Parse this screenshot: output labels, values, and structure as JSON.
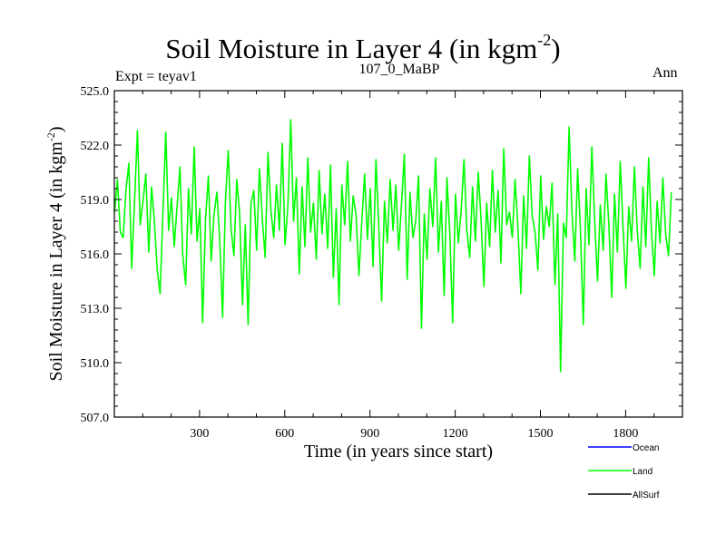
{
  "chart_data": {
    "type": "line",
    "title": "Soil Moisture in Layer 4 (in kgm",
    "title_superscript": "-2",
    "title_suffix": ")",
    "subtitle_left": "Expt = teyav1",
    "subtitle_center": "107_0_MaBP",
    "subtitle_right": "Ann",
    "xlabel": "Time (in years since start)",
    "ylabel": "Soil Moisture in Layer 4 (in kgm",
    "ylabel_superscript": "-2",
    "ylabel_suffix": ")",
    "xlim": [
      0,
      2000
    ],
    "ylim": [
      507.0,
      525.0
    ],
    "xticks": [
      300,
      600,
      900,
      1200,
      1500,
      1800
    ],
    "yticks": [
      "507.0",
      "510.0",
      "513.0",
      "516.0",
      "519.0",
      "522.0",
      "525.0"
    ],
    "legend_placement": "bottom-right",
    "series": [
      {
        "name": "Ocean",
        "color": "#0000ff",
        "values": []
      },
      {
        "name": "Land",
        "color": "#00ff00",
        "x_start": 1,
        "x_step": 10,
        "values": [
          518.3,
          520.1,
          517.2,
          516.9,
          519.5,
          521.0,
          515.2,
          518.8,
          522.8,
          517.6,
          518.9,
          520.4,
          516.1,
          519.7,
          517.8,
          515.1,
          513.8,
          518.2,
          522.7,
          517.3,
          519.1,
          516.4,
          518.7,
          520.8,
          515.9,
          514.3,
          519.6,
          517.1,
          521.9,
          516.7,
          518.5,
          512.2,
          517.9,
          520.3,
          515.6,
          518.2,
          519.4,
          516.8,
          512.5,
          518.9,
          521.7,
          517.4,
          515.9,
          520.1,
          518.3,
          513.2,
          517.6,
          512.1,
          518.8,
          519.5,
          516.2,
          520.7,
          517.9,
          515.8,
          521.6,
          518.4,
          516.9,
          519.8,
          517.3,
          522.1,
          516.5,
          518.6,
          523.4,
          517.8,
          520.2,
          514.9,
          519.7,
          516.4,
          521.3,
          517.2,
          518.8,
          515.7,
          520.6,
          517.1,
          519.3,
          516.3,
          520.9,
          514.7,
          518.5,
          513.2,
          519.8,
          517.6,
          521.1,
          516.7,
          519.2,
          518.1,
          514.8,
          517.7,
          520.4,
          516.8,
          519.6,
          515.3,
          521.2,
          517.5,
          513.4,
          518.9,
          516.6,
          520.1,
          517.3,
          519.8,
          516.2,
          518.7,
          521.5,
          514.6,
          519.4,
          516.9,
          517.8,
          520.3,
          511.9,
          518.2,
          515.7,
          519.6,
          517.5,
          521.3,
          516.1,
          518.9,
          513.7,
          520.2,
          517.1,
          512.2,
          519.3,
          516.6,
          518.4,
          521.2,
          517.3,
          515.8,
          519.7,
          516.7,
          520.5,
          517.9,
          514.2,
          518.8,
          516.4,
          520.6,
          517.2,
          519.5,
          515.5,
          521.8,
          517.6,
          518.3,
          516.9,
          520.1,
          517.4,
          513.8,
          519.2,
          516.3,
          521.4,
          518.1,
          517.2,
          515.1,
          520.3,
          516.8,
          518.6,
          517.5,
          519.9,
          514.3,
          518.2,
          509.5,
          517.7,
          516.9,
          523.0,
          518.4,
          515.6,
          520.7,
          517.3,
          512.1,
          519.6,
          516.5,
          521.9,
          517.8,
          514.5,
          518.7,
          516.2,
          520.4,
          517.6,
          513.6,
          519.3,
          516.1,
          521.1,
          517.4,
          514.1,
          518.6,
          516.7,
          520.8,
          517.3,
          515.2,
          519.7,
          516.4,
          521.3,
          517.2,
          514.8,
          518.9,
          516.6,
          520.2,
          517.1,
          515.9,
          519.4
        ]
      },
      {
        "name": "AllSurf",
        "color": "#000000",
        "values": []
      }
    ]
  }
}
